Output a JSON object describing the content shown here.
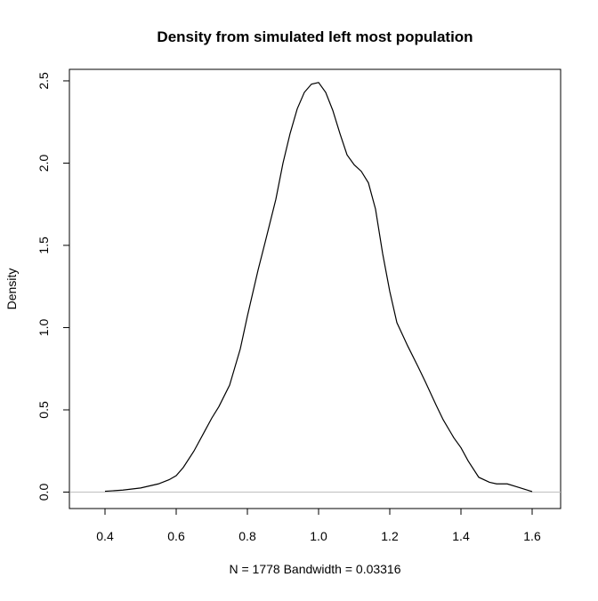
{
  "chart_data": {
    "type": "line",
    "title": "Density from simulated left most population",
    "xlabel": "N = 1778   Bandwidth = 0.03316",
    "ylabel": "Density",
    "xlim": [
      0.3,
      1.68
    ],
    "ylim": [
      -0.1,
      2.57
    ],
    "x_ticks": [
      0.4,
      0.6,
      0.8,
      1.0,
      1.2,
      1.4,
      1.6
    ],
    "x_tick_labels": [
      "0.4",
      "0.6",
      "0.8",
      "1.0",
      "1.2",
      "1.4",
      "1.6"
    ],
    "y_ticks": [
      0.0,
      0.5,
      1.0,
      1.5,
      2.0,
      2.5
    ],
    "y_tick_labels": [
      "0.0",
      "0.5",
      "1.0",
      "1.5",
      "2.0",
      "2.5"
    ],
    "grid": false,
    "legend": "none",
    "baseline": 0,
    "colors": {
      "curve": "#000000",
      "baseline": "#bebebe",
      "frame": "#000000"
    },
    "series": [
      {
        "x": [
          0.4,
          0.45,
          0.5,
          0.55,
          0.58,
          0.6,
          0.62,
          0.65,
          0.68,
          0.7,
          0.72,
          0.75,
          0.78,
          0.8,
          0.83,
          0.85,
          0.88,
          0.9,
          0.92,
          0.94,
          0.96,
          0.98,
          1.0,
          1.02,
          1.04,
          1.06,
          1.08,
          1.1,
          1.12,
          1.14,
          1.16,
          1.18,
          1.2,
          1.22,
          1.25,
          1.28,
          1.3,
          1.33,
          1.35,
          1.38,
          1.4,
          1.42,
          1.45,
          1.48,
          1.5,
          1.53,
          1.56,
          1.6
        ],
        "y": [
          0.005,
          0.012,
          0.025,
          0.05,
          0.075,
          0.1,
          0.15,
          0.25,
          0.37,
          0.45,
          0.52,
          0.65,
          0.87,
          1.07,
          1.35,
          1.52,
          1.78,
          2.0,
          2.18,
          2.33,
          2.43,
          2.48,
          2.49,
          2.43,
          2.32,
          2.18,
          2.05,
          1.99,
          1.95,
          1.88,
          1.72,
          1.45,
          1.22,
          1.03,
          0.89,
          0.76,
          0.67,
          0.53,
          0.44,
          0.33,
          0.27,
          0.19,
          0.09,
          0.06,
          0.05,
          0.05,
          0.03,
          0.003
        ]
      }
    ]
  }
}
